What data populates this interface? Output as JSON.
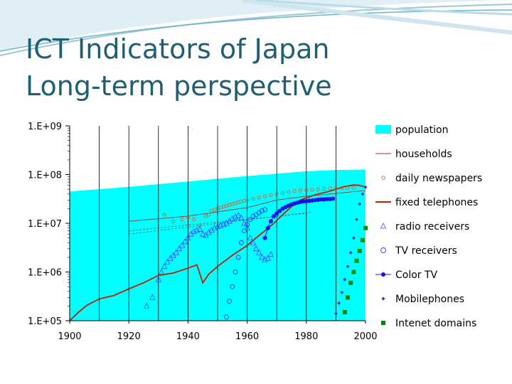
{
  "slide": {
    "title_line1": "ICT Indicators of Japan",
    "title_line2": "Long-term perspective"
  },
  "colors": {
    "title": "#1f5f73",
    "population_fill": "#00ffff",
    "households": "#993333",
    "daily_newspapers": "#cc6633",
    "fixed_telephones": "#bb2200",
    "radio_receivers": "#4444ff",
    "tv_receivers": "#3333ff",
    "color_tv": "#1111ee",
    "mobilephones": "#3333cc",
    "internet_domains": "#008800"
  },
  "chart_data": {
    "type": "scatter",
    "y_scale": "log",
    "xlim": [
      1900,
      2000
    ],
    "ylim": [
      100000,
      1000000000
    ],
    "x_ticks": [
      "1900",
      "1920",
      "1940",
      "1960",
      "1980",
      "2000"
    ],
    "y_ticks": [
      "1.E+09",
      "1.E+08",
      "1.E+07",
      "1.E+06",
      "1.E+05"
    ],
    "vertical_gridlines": [
      1910,
      1920,
      1930,
      1940,
      1950,
      1960,
      1970,
      1980,
      1990
    ],
    "legend_position": "right",
    "series": [
      {
        "name": "population",
        "style": "area",
        "points": [
          [
            1900,
            45000000
          ],
          [
            1920,
            56000000
          ],
          [
            1940,
            72000000
          ],
          [
            1960,
            93000000
          ],
          [
            1980,
            117000000
          ],
          [
            1990,
            124000000
          ],
          [
            2000,
            127000000
          ]
        ]
      },
      {
        "name": "households",
        "style": "line",
        "points": [
          [
            1920,
            11000000
          ],
          [
            1940,
            14000000
          ],
          [
            1960,
            21000000
          ],
          [
            1970,
            30000000
          ],
          [
            1980,
            36000000
          ],
          [
            1990,
            41000000
          ],
          [
            2000,
            47000000
          ]
        ]
      },
      {
        "name": "daily newspapers",
        "style": "marker-circle-small",
        "points": [
          [
            1932,
            15000000
          ],
          [
            1935,
            11000000
          ],
          [
            1938,
            12000000
          ],
          [
            1940,
            13000000
          ],
          [
            1942,
            12000000
          ],
          [
            1944,
            9000000
          ],
          [
            1946,
            14000000
          ],
          [
            1947,
            15000000
          ],
          [
            1948,
            18000000
          ],
          [
            1949,
            19000000
          ],
          [
            1950,
            20000000
          ],
          [
            1951,
            21000000
          ],
          [
            1952,
            22000000
          ],
          [
            1953,
            23000000
          ],
          [
            1954,
            24000000
          ],
          [
            1955,
            25000000
          ],
          [
            1956,
            26000000
          ],
          [
            1957,
            27000000
          ],
          [
            1958,
            28000000
          ],
          [
            1959,
            29000000
          ],
          [
            1960,
            30000000
          ],
          [
            1962,
            32000000
          ],
          [
            1964,
            34000000
          ],
          [
            1966,
            36000000
          ],
          [
            1968,
            38000000
          ],
          [
            1970,
            40000000
          ],
          [
            1972,
            42000000
          ],
          [
            1974,
            44000000
          ],
          [
            1976,
            46000000
          ],
          [
            1978,
            47000000
          ],
          [
            1980,
            48000000
          ],
          [
            1982,
            49000000
          ],
          [
            1984,
            50000000
          ],
          [
            1986,
            51000000
          ],
          [
            1988,
            52000000
          ],
          [
            1990,
            52500000
          ],
          [
            1992,
            53000000
          ],
          [
            1994,
            53000000
          ],
          [
            1996,
            53500000
          ]
        ]
      },
      {
        "name": "fixed telephones",
        "style": "line",
        "points": [
          [
            1900,
            100000
          ],
          [
            1903,
            150000
          ],
          [
            1906,
            210000
          ],
          [
            1910,
            280000
          ],
          [
            1915,
            330000
          ],
          [
            1920,
            450000
          ],
          [
            1925,
            600000
          ],
          [
            1930,
            850000
          ],
          [
            1935,
            950000
          ],
          [
            1940,
            1200000
          ],
          [
            1943,
            1400000
          ],
          [
            1945,
            600000
          ],
          [
            1947,
            900000
          ],
          [
            1950,
            1300000
          ],
          [
            1955,
            2200000
          ],
          [
            1960,
            3500000
          ],
          [
            1963,
            5000000
          ],
          [
            1966,
            7000000
          ],
          [
            1969,
            10000000
          ],
          [
            1972,
            15000000
          ],
          [
            1975,
            22000000
          ],
          [
            1978,
            30000000
          ],
          [
            1981,
            35000000
          ],
          [
            1984,
            40000000
          ],
          [
            1987,
            44000000
          ],
          [
            1990,
            50000000
          ],
          [
            1993,
            57000000
          ],
          [
            1996,
            61000000
          ],
          [
            1998,
            60000000
          ],
          [
            2000,
            55000000
          ]
        ]
      },
      {
        "name": "radio receivers",
        "style": "marker-triangle",
        "points": [
          [
            1926,
            200000
          ],
          [
            1928,
            300000
          ],
          [
            1930,
            700000
          ],
          [
            1931,
            1000000
          ],
          [
            1932,
            1300000
          ],
          [
            1933,
            1600000
          ],
          [
            1934,
            1900000
          ],
          [
            1935,
            2200000
          ],
          [
            1936,
            2500000
          ],
          [
            1937,
            3000000
          ],
          [
            1938,
            3500000
          ],
          [
            1939,
            4200000
          ],
          [
            1940,
            5000000
          ],
          [
            1941,
            6000000
          ],
          [
            1942,
            6800000
          ],
          [
            1943,
            7200000
          ],
          [
            1944,
            7500000
          ],
          [
            1945,
            6000000
          ],
          [
            1946,
            5700000
          ],
          [
            1947,
            6500000
          ],
          [
            1948,
            7200000
          ],
          [
            1949,
            8000000
          ],
          [
            1950,
            8600000
          ],
          [
            1951,
            9000000
          ],
          [
            1952,
            9500000
          ],
          [
            1953,
            10000000
          ],
          [
            1954,
            11000000
          ],
          [
            1955,
            12500000
          ],
          [
            1956,
            13500000
          ],
          [
            1957,
            14500000
          ],
          [
            1958,
            13000000
          ],
          [
            1959,
            10000000
          ],
          [
            1960,
            8000000
          ],
          [
            1961,
            5000000
          ],
          [
            1962,
            4000000
          ],
          [
            1963,
            3000000
          ],
          [
            1964,
            2500000
          ],
          [
            1965,
            2000000
          ],
          [
            1966,
            1800000
          ],
          [
            1967,
            1900000
          ],
          [
            1968,
            2300000
          ]
        ]
      },
      {
        "name": "TV receivers",
        "style": "marker-circle",
        "points": [
          [
            1953,
            120000
          ],
          [
            1954,
            250000
          ],
          [
            1955,
            500000
          ],
          [
            1956,
            1000000
          ],
          [
            1957,
            2000000
          ],
          [
            1958,
            4000000
          ],
          [
            1959,
            7000000
          ],
          [
            1960,
            9500000
          ],
          [
            1961,
            12000000
          ],
          [
            1962,
            14000000
          ],
          [
            1963,
            15000000
          ],
          [
            1964,
            16500000
          ],
          [
            1965,
            18000000
          ],
          [
            1966,
            19000000
          ]
        ]
      },
      {
        "name": "Color TV",
        "style": "line-marker-dot",
        "points": [
          [
            1966,
            5000000
          ],
          [
            1967,
            8000000
          ],
          [
            1968,
            11000000
          ],
          [
            1969,
            14000000
          ],
          [
            1970,
            16000000
          ],
          [
            1971,
            18000000
          ],
          [
            1972,
            20000000
          ],
          [
            1973,
            21500000
          ],
          [
            1974,
            23000000
          ],
          [
            1975,
            24500000
          ],
          [
            1976,
            25500000
          ],
          [
            1977,
            26500000
          ],
          [
            1978,
            27500000
          ],
          [
            1979,
            28000000
          ],
          [
            1980,
            28500000
          ],
          [
            1981,
            29000000
          ],
          [
            1982,
            29500000
          ],
          [
            1983,
            30000000
          ],
          [
            1984,
            30500000
          ],
          [
            1985,
            31000000
          ],
          [
            1986,
            31000000
          ],
          [
            1987,
            31500000
          ],
          [
            1988,
            31500000
          ],
          [
            1989,
            32000000
          ]
        ]
      },
      {
        "name": "Mobilephones",
        "style": "marker-diamond",
        "points": [
          [
            1990,
            140000
          ],
          [
            1991,
            230000
          ],
          [
            1992,
            380000
          ],
          [
            1993,
            700000
          ],
          [
            1994,
            1300000
          ],
          [
            1995,
            2500000
          ],
          [
            1996,
            5000000
          ],
          [
            1997,
            12000000
          ],
          [
            1998,
            25000000
          ],
          [
            1999,
            40000000
          ],
          [
            2000,
            55000000
          ]
        ]
      },
      {
        "name": "Intenet domains",
        "style": "marker-square",
        "points": [
          [
            1993,
            150000
          ],
          [
            1994,
            300000
          ],
          [
            1995,
            600000
          ],
          [
            1996,
            1000000
          ],
          [
            1997,
            1700000
          ],
          [
            1998,
            2700000
          ],
          [
            1999,
            4500000
          ],
          [
            2000,
            8000000
          ]
        ]
      }
    ],
    "extra_lines": [
      {
        "points": [
          [
            1920,
            6000000
          ],
          [
            1982,
            17000000
          ]
        ]
      },
      {
        "points": [
          [
            1920,
            7000000
          ],
          [
            1980,
            16000000
          ]
        ]
      }
    ]
  }
}
